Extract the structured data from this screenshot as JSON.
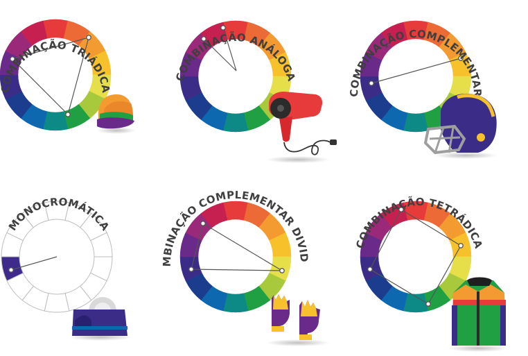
{
  "colors": {
    "wheel": [
      "#E63B3A",
      "#EB6A35",
      "#F39B31",
      "#F7C12C",
      "#E6DF4A",
      "#A9C93C",
      "#20A043",
      "#0D8A86",
      "#0D68B0",
      "#1C3C8E",
      "#3B2C88",
      "#6A2A8A",
      "#9A2A79",
      "#C52050"
    ],
    "mono_segment": "#3D2A8A",
    "line": "#555555",
    "label": "#3f3f3f"
  },
  "panels": [
    {
      "title": "COMBINAÇÃO TRIÁDICA",
      "type": "triad",
      "object": "cap-icon"
    },
    {
      "title": "COMBINAÇÃO ANÁLOGA",
      "type": "analogous",
      "object": "hair-dryer-icon"
    },
    {
      "title": "COMBINAÇÃO COMPLEMENTAR",
      "type": "complementary",
      "object": "football-helmet-icon"
    },
    {
      "title": "MONOCROMÁTICA",
      "type": "monochromatic",
      "object": "tape-dispenser-icon"
    },
    {
      "title": "COMBINAÇÃO COMPLEMENTAR DIVIDIDA",
      "type": "split-complementary",
      "object": "gloves-icon"
    },
    {
      "title": "COMBINAÇÃO TETRÁDICA",
      "type": "tetradic",
      "object": "jacket-icon"
    }
  ]
}
